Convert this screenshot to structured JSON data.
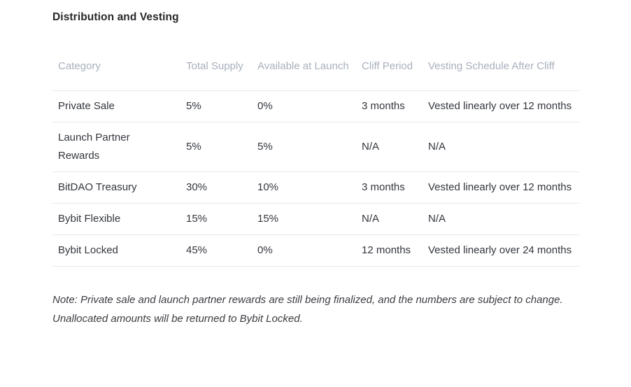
{
  "page": {
    "title": "Distribution and Vesting",
    "note": "Note: Private sale and launch partner rewards are still being finalized, and the numbers are subject to change. Unallocated amounts will be returned to Bybit Locked."
  },
  "colors": {
    "background": "#ffffff",
    "title_text": "#26282b",
    "header_text": "#a9b0bc",
    "body_text": "#33363d",
    "note_text": "#3b3c41",
    "row_border": "#e3e8ee"
  },
  "table": {
    "columns": [
      "Category",
      "Total Supply",
      "Available at Launch",
      "Cliff Period",
      "Vesting Schedule After Cliff"
    ],
    "rows": [
      {
        "category": "Private Sale",
        "total_supply": "5%",
        "available_at_launch": "0%",
        "cliff_period": "3 months",
        "vesting_schedule": "Vested linearly over 12 months"
      },
      {
        "category": "Launch Partner Rewards",
        "total_supply": "5%",
        "available_at_launch": "5%",
        "cliff_period": "N/A",
        "vesting_schedule": "N/A"
      },
      {
        "category": "BitDAO Treasury",
        "total_supply": "30%",
        "available_at_launch": "10%",
        "cliff_period": "3 months",
        "vesting_schedule": "Vested linearly over 12 months"
      },
      {
        "category": "Bybit Flexible",
        "total_supply": "15%",
        "available_at_launch": "15%",
        "cliff_period": "N/A",
        "vesting_schedule": "N/A"
      },
      {
        "category": "Bybit Locked",
        "total_supply": "45%",
        "available_at_launch": "0%",
        "cliff_period": "12 months",
        "vesting_schedule": "Vested linearly over 24 months"
      }
    ]
  }
}
